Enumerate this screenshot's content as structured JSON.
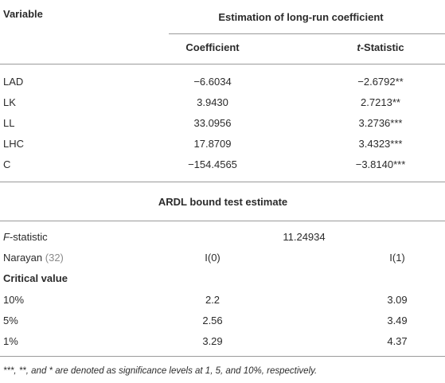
{
  "table": {
    "header": {
      "variable": "Variable",
      "group": "Estimation of long-run coefficient",
      "columns": [
        "Coefficient",
        "t-Statistic"
      ]
    },
    "rows": [
      [
        "LAD",
        "−6.6034",
        "−2.6792**"
      ],
      [
        "LK",
        "3.9430",
        "2.7213**"
      ],
      [
        "LL",
        "33.0956",
        "3.2736***"
      ],
      [
        "LHC",
        "17.8709",
        "3.4323***"
      ],
      [
        "C",
        "−154.4565",
        "−3.8140***"
      ]
    ],
    "section": "ARDL bound test estimate",
    "f_statistic": {
      "label": "F-statistic",
      "value": "11.24934"
    },
    "narayan": {
      "label": "Narayan",
      "citation": "(32)",
      "columns": [
        "I(0)",
        "I(1)"
      ]
    },
    "critical_value": "Critical value",
    "critical_rows": [
      [
        "10%",
        "2.2",
        "3.09"
      ],
      [
        "5%",
        "2.56",
        "3.49"
      ],
      [
        "1%",
        "3.29",
        "4.37"
      ]
    ]
  },
  "footnote": "***, **, and * are denoted as significance levels at 1, 5, and 10%, respectively."
}
